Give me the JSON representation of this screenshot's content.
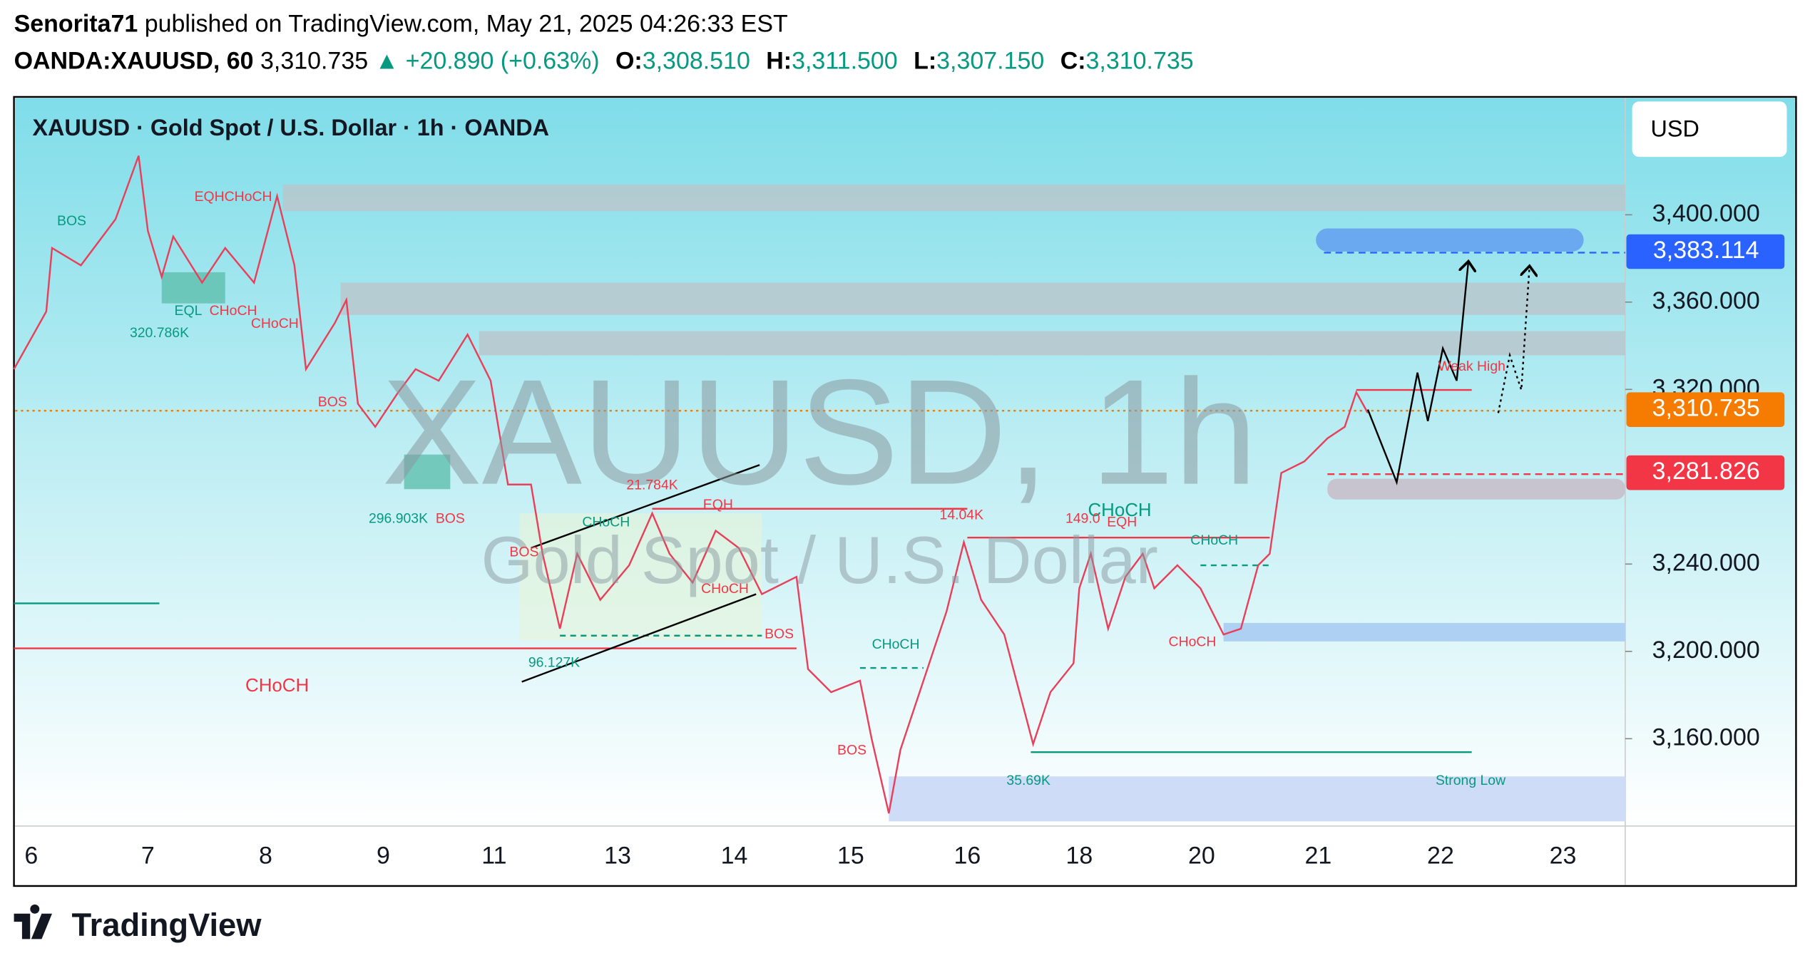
{
  "header": {
    "author": "Senorita71",
    "published": "published on TradingView.com, May 21, 2025 04:26:33 EST",
    "symbol": "OANDA:XAUUSD, 60",
    "price": "3,310.735",
    "change": "▲ +20.890 (+0.63%)",
    "ohlc": [
      {
        "label": "O:",
        "value": "3,308.510"
      },
      {
        "label": "H:",
        "value": "3,311.500"
      },
      {
        "label": "L:",
        "value": "3,307.150"
      },
      {
        "label": "C:",
        "value": "3,310.735"
      }
    ]
  },
  "chart_data": {
    "type": "candlestick",
    "title": "XAUUSD · Gold Spot / U.S. Dollar · 1h · OANDA",
    "currency": "USD",
    "watermark": "XAUUSD, 1h",
    "watermark_sub": "Gold Spot / U.S. Dollar",
    "ylim": [
      3120,
      3454
    ],
    "yticks": [
      {
        "value": 3160,
        "label": "3,160.000"
      },
      {
        "value": 3200,
        "label": "3,200.000"
      },
      {
        "value": 3240,
        "label": "3,240.000"
      },
      {
        "value": 3320,
        "label": "3,320.000"
      },
      {
        "value": 3360,
        "label": "3,360.000"
      },
      {
        "value": 3400,
        "label": "3,400.000"
      }
    ],
    "price_labels": [
      {
        "value": 3383.114,
        "label": "3,383.114",
        "color": "#2962ff"
      },
      {
        "value": 3310.735,
        "label": "3,310.735",
        "color": "#f57c00"
      },
      {
        "value": 3281.826,
        "label": "3,281.826",
        "color": "#f23645"
      }
    ],
    "x_labels": [
      "6",
      "7",
      "8",
      "9",
      "11",
      "13",
      "14",
      "15",
      "16",
      "18",
      "20",
      "21",
      "22",
      "23"
    ],
    "annotations": [
      "BOS",
      "EQHCHoCH",
      "EQL",
      "CHoCH",
      "CHoCH",
      "320.786K",
      "BOS",
      "296.903K",
      "BOS",
      "BOS",
      "21.784K",
      "EQH",
      "CHoCH",
      "CHoCH",
      "96.127K",
      "BOS",
      "14.04K",
      "CHoCH",
      "BOS",
      "35.69K",
      "CHoCH",
      "149.0",
      "EQH",
      "CHoCH",
      "CHoCH",
      "Weak High",
      "Strong Low",
      "CHoCH"
    ]
  },
  "footer": {
    "brand": "TradingView"
  }
}
